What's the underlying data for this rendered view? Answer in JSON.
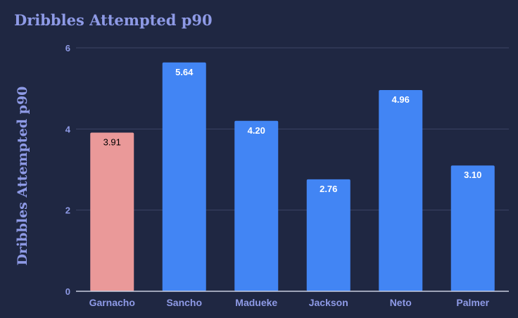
{
  "chart_data": {
    "type": "bar",
    "title": "Dribbles Attempted p90",
    "ylabel": "Dribbles Attempted p90",
    "xlabel": "",
    "categories": [
      "Garnacho",
      "Sancho",
      "Madueke",
      "Jackson",
      "Neto",
      "Palmer"
    ],
    "values": [
      3.91,
      5.64,
      4.2,
      2.76,
      4.96,
      3.1
    ],
    "value_labels": [
      "3.91",
      "5.64",
      "4.20",
      "2.76",
      "4.96",
      "3.10"
    ],
    "highlight_category": "Garnacho",
    "ylim": [
      0,
      6
    ],
    "yticks": [
      0,
      2,
      4,
      6
    ],
    "grid": true,
    "legend": "none"
  },
  "colors": {
    "background": "#1f2742",
    "bar": "#4285f4",
    "highlight_bar": "#ea9999",
    "label_text": "#8e9ae6",
    "gridline": "#3d4566",
    "axis_line": "#c8cde0",
    "bar_value_text": "#ffffff",
    "highlight_value_text": "#000000"
  }
}
